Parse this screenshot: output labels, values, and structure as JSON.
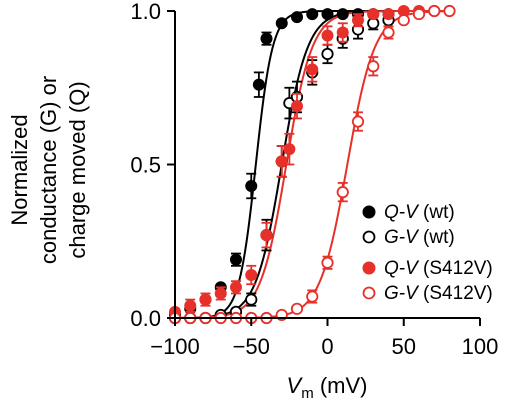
{
  "chart_data": {
    "type": "scatter",
    "xlabel_var": "V",
    "xlabel_sub": "m",
    "xlabel_unit": "(mV)",
    "ylabel_lines": [
      "Normalized",
      "conductance (G) or",
      "charge moved (Q)"
    ],
    "xlim": [
      -100,
      100
    ],
    "ylim": [
      0,
      1
    ],
    "x_ticks": [
      -100,
      -50,
      0,
      50,
      100
    ],
    "x_tick_labels": [
      "−100",
      "−50",
      "0",
      "50",
      "100"
    ],
    "y_ticks": [
      0,
      0.5,
      1
    ],
    "y_tick_labels": [
      "0.0",
      "0.5",
      "1.0"
    ],
    "legend_position": "bottom-right",
    "series": [
      {
        "name": "Q-V (wt)",
        "name_var": "Q-V",
        "name_tag": "(wt)",
        "color": "#000000",
        "marker": "filled",
        "x": [
          -100,
          -90,
          -80,
          -70,
          -60,
          -50,
          -45,
          -40,
          -30,
          -20,
          -10,
          0,
          10,
          20,
          30,
          40
        ],
        "y": [
          0.01,
          0.03,
          0.06,
          0.1,
          0.19,
          0.43,
          0.76,
          0.91,
          0.96,
          0.98,
          0.99,
          0.99,
          0.99,
          0.99,
          0.99,
          0.99
        ],
        "err": [
          0.01,
          0.01,
          0.01,
          0.01,
          0.02,
          0.04,
          0.04,
          0.02,
          0.01,
          0.01,
          0.01,
          0.01,
          0.01,
          0.01,
          0.01,
          0.01
        ],
        "fit_v_half": -47,
        "fit_slope": 5.5
      },
      {
        "name": "G-V (wt)",
        "name_var": "G-V",
        "name_tag": "(wt)",
        "color": "#000000",
        "marker": "open",
        "x": [
          -100,
          -90,
          -80,
          -70,
          -60,
          -50,
          -40,
          -30,
          -25,
          -20,
          -10,
          0,
          10,
          20,
          30,
          40
        ],
        "y": [
          0.0,
          0.0,
          0.0,
          0.01,
          0.02,
          0.06,
          0.27,
          0.51,
          0.7,
          0.72,
          0.8,
          0.86,
          0.91,
          0.94,
          0.96,
          0.97
        ],
        "err": [
          0.0,
          0.0,
          0.0,
          0.01,
          0.01,
          0.02,
          0.05,
          0.05,
          0.05,
          0.05,
          0.04,
          0.03,
          0.03,
          0.03,
          0.02,
          0.02
        ],
        "fit_v_half": -30,
        "fit_slope": 8.5
      },
      {
        "name": "Q-V (S412V)",
        "name_var": "Q-V",
        "name_tag": "(S412V)",
        "color": "#e8302a",
        "marker": "filled",
        "x": [
          -100,
          -90,
          -80,
          -70,
          -60,
          -50,
          -40,
          -30,
          -25,
          -20,
          -10,
          0,
          10,
          20,
          30,
          40,
          50,
          60,
          70
        ],
        "y": [
          0.02,
          0.04,
          0.06,
          0.08,
          0.1,
          0.14,
          0.27,
          0.51,
          0.55,
          0.69,
          0.81,
          0.92,
          0.93,
          0.97,
          0.99,
          0.99,
          1.0,
          1.0,
          1.0
        ],
        "err": [
          0.01,
          0.02,
          0.02,
          0.02,
          0.02,
          0.03,
          0.04,
          0.05,
          0.05,
          0.04,
          0.04,
          0.03,
          0.03,
          0.02,
          0.01,
          0.01,
          0.01,
          0.01,
          0.01
        ],
        "fit_v_half": -27,
        "fit_slope": 8.5
      },
      {
        "name": "G-V (S412V)",
        "name_var": "G-V",
        "name_tag": "(S412V)",
        "color": "#e8302a",
        "marker": "open",
        "x": [
          -100,
          -90,
          -80,
          -70,
          -60,
          -50,
          -40,
          -30,
          -20,
          -10,
          0,
          10,
          20,
          30,
          40,
          50,
          60,
          70,
          80
        ],
        "y": [
          0.0,
          0.0,
          0.0,
          0.0,
          0.0,
          0.0,
          0.0,
          0.01,
          0.03,
          0.07,
          0.18,
          0.41,
          0.64,
          0.82,
          0.93,
          0.97,
          0.99,
          1.0,
          1.0
        ],
        "err": [
          0.0,
          0.0,
          0.0,
          0.0,
          0.0,
          0.0,
          0.0,
          0.01,
          0.01,
          0.02,
          0.02,
          0.03,
          0.03,
          0.03,
          0.02,
          0.01,
          0.01,
          0.01,
          0.01
        ],
        "fit_v_half": 13,
        "fit_slope": 9
      }
    ]
  }
}
